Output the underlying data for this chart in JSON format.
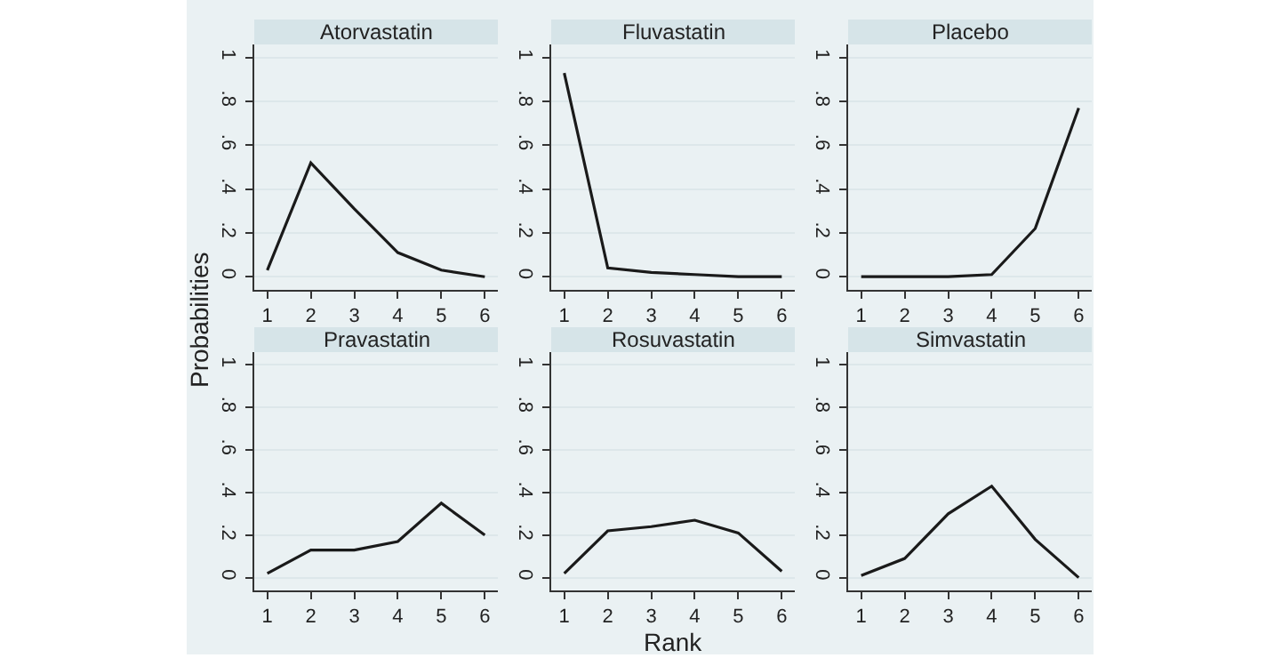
{
  "chart_data": [
    {
      "type": "line",
      "title": "Atorvastatin",
      "ylabel": "Probabilities",
      "x": [
        1,
        2,
        3,
        4,
        5,
        6
      ],
      "values": [
        0.03,
        0.52,
        0.31,
        0.11,
        0.03,
        0.0
      ],
      "color": "#1a1a1a",
      "xlim": [
        0.7,
        6.3
      ],
      "xticks": [
        1,
        2,
        3,
        4,
        5,
        6
      ],
      "ylim": [
        -0.06,
        1.06
      ],
      "yticks": [
        0,
        {
          "value": 0.2,
          "label": ".2"
        },
        {
          "value": 0.4,
          "label": ".4"
        },
        {
          "value": 0.6,
          "label": ".6"
        },
        {
          "value": 0.8,
          "label": ".8"
        },
        1
      ],
      "grid": "y",
      "marker": "none",
      "line_style": "solid"
    },
    {
      "type": "line",
      "title": "Fluvastatin",
      "x": [
        1,
        2,
        3,
        4,
        5,
        6
      ],
      "values": [
        0.93,
        0.04,
        0.02,
        0.01,
        0.0,
        0.0
      ],
      "color": "#1a1a1a",
      "xlim": [
        0.7,
        6.3
      ],
      "xticks": [
        1,
        2,
        3,
        4,
        5,
        6
      ],
      "ylim": [
        -0.06,
        1.06
      ],
      "yticks": [
        0,
        {
          "value": 0.2,
          "label": ".2"
        },
        {
          "value": 0.4,
          "label": ".4"
        },
        {
          "value": 0.6,
          "label": ".6"
        },
        {
          "value": 0.8,
          "label": ".8"
        },
        1
      ],
      "grid": "y",
      "marker": "none",
      "line_style": "solid"
    },
    {
      "type": "line",
      "title": "Placebo",
      "x": [
        1,
        2,
        3,
        4,
        5,
        6
      ],
      "values": [
        0.0,
        0.0,
        0.0,
        0.01,
        0.22,
        0.77
      ],
      "color": "#1a1a1a",
      "xlim": [
        0.7,
        6.3
      ],
      "xticks": [
        1,
        2,
        3,
        4,
        5,
        6
      ],
      "ylim": [
        -0.06,
        1.06
      ],
      "yticks": [
        0,
        {
          "value": 0.2,
          "label": ".2"
        },
        {
          "value": 0.4,
          "label": ".4"
        },
        {
          "value": 0.6,
          "label": ".6"
        },
        {
          "value": 0.8,
          "label": ".8"
        },
        1
      ],
      "grid": "y",
      "marker": "none",
      "line_style": "solid"
    },
    {
      "type": "line",
      "title": "Pravastatin",
      "x": [
        1,
        2,
        3,
        4,
        5,
        6
      ],
      "values": [
        0.02,
        0.13,
        0.13,
        0.17,
        0.35,
        0.2
      ],
      "color": "#1a1a1a",
      "xlim": [
        0.7,
        6.3
      ],
      "xticks": [
        1,
        2,
        3,
        4,
        5,
        6
      ],
      "ylim": [
        -0.06,
        1.06
      ],
      "yticks": [
        0,
        {
          "value": 0.2,
          "label": ".2"
        },
        {
          "value": 0.4,
          "label": ".4"
        },
        {
          "value": 0.6,
          "label": ".6"
        },
        {
          "value": 0.8,
          "label": ".8"
        },
        1
      ],
      "grid": "y",
      "marker": "none",
      "line_style": "solid"
    },
    {
      "type": "line",
      "title": "Rosuvastatin",
      "xlabel": "Rank",
      "x": [
        1,
        2,
        3,
        4,
        5,
        6
      ],
      "values": [
        0.02,
        0.22,
        0.24,
        0.27,
        0.21,
        0.03
      ],
      "color": "#1a1a1a",
      "xlim": [
        0.7,
        6.3
      ],
      "xticks": [
        1,
        2,
        3,
        4,
        5,
        6
      ],
      "ylim": [
        -0.06,
        1.06
      ],
      "yticks": [
        0,
        {
          "value": 0.2,
          "label": ".2"
        },
        {
          "value": 0.4,
          "label": ".4"
        },
        {
          "value": 0.6,
          "label": ".6"
        },
        {
          "value": 0.8,
          "label": ".8"
        },
        1
      ],
      "grid": "y",
      "marker": "none",
      "line_style": "solid"
    },
    {
      "type": "line",
      "title": "Simvastatin",
      "x": [
        1,
        2,
        3,
        4,
        5,
        6
      ],
      "values": [
        0.01,
        0.09,
        0.3,
        0.43,
        0.18,
        0.0
      ],
      "color": "#1a1a1a",
      "xlim": [
        0.7,
        6.3
      ],
      "xticks": [
        1,
        2,
        3,
        4,
        5,
        6
      ],
      "ylim": [
        -0.06,
        1.06
      ],
      "yticks": [
        0,
        {
          "value": 0.2,
          "label": ".2"
        },
        {
          "value": 0.4,
          "label": ".4"
        },
        {
          "value": 0.6,
          "label": ".6"
        },
        {
          "value": 0.8,
          "label": ".8"
        },
        1
      ],
      "grid": "y",
      "marker": "none",
      "line_style": "solid"
    }
  ]
}
